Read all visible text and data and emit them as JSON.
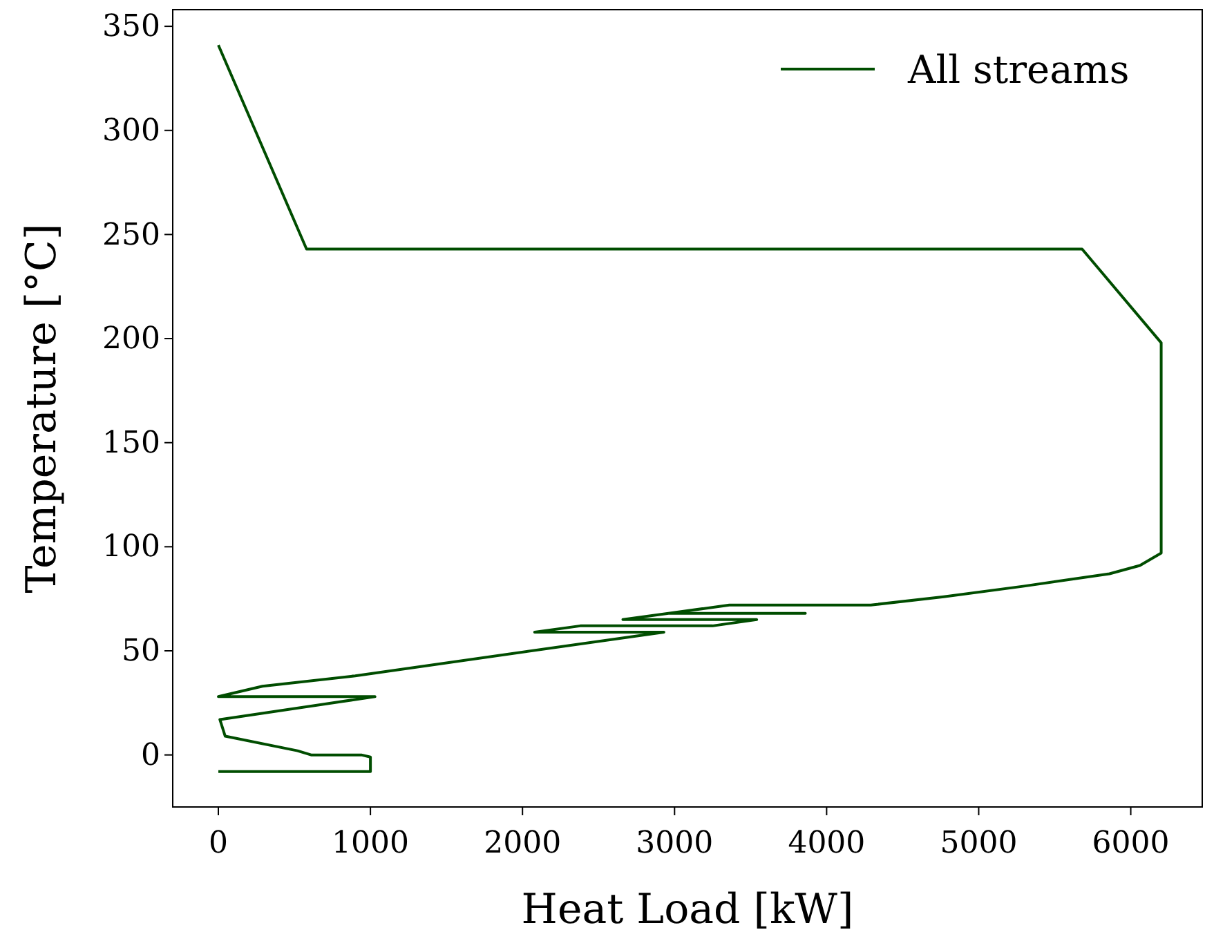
{
  "chart_data": {
    "type": "line",
    "xlabel": "Heat Load [kW]",
    "ylabel": "Temperature [°C]",
    "xlim": [
      -300,
      6470
    ],
    "ylim": [
      -25,
      358
    ],
    "xticks": [
      0,
      1000,
      2000,
      3000,
      4000,
      5000,
      6000
    ],
    "yticks": [
      0,
      50,
      100,
      150,
      200,
      250,
      300,
      350
    ],
    "grid": false,
    "legend": "top right",
    "line_style": "solid",
    "marker": "none",
    "series": [
      {
        "name": "All streams",
        "color": "#004d00",
        "x": [
          0,
          1000,
          1000,
          940,
          610,
          520,
          45,
          10,
          1030,
          0,
          290,
          900,
          2930,
          2080,
          2380,
          3250,
          3540,
          2660,
          2960,
          3860,
          2960,
          3360,
          4290,
          4770,
          5290,
          5860,
          6060,
          6200,
          6200,
          6200,
          5680,
          580,
          0
        ],
        "values": [
          -8,
          -8,
          -1,
          0,
          0,
          2,
          9,
          17,
          28,
          28,
          33,
          38,
          59,
          59,
          62,
          62,
          65,
          65,
          68,
          68,
          68,
          72,
          72,
          76,
          81,
          87,
          91,
          97,
          102,
          198,
          243,
          243,
          341
        ]
      }
    ]
  }
}
